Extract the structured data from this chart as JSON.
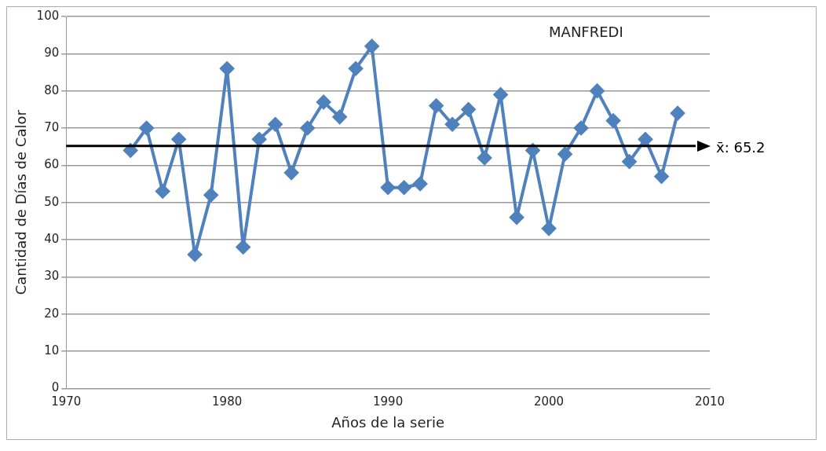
{
  "chart_data": {
    "type": "line",
    "xlabel": "Años de la serie",
    "ylabel": "Cantidad de Días de Calor",
    "annotations": [
      "MANFREDI"
    ],
    "x": [
      1974,
      1975,
      1976,
      1977,
      1978,
      1979,
      1980,
      1981,
      1982,
      1983,
      1984,
      1985,
      1986,
      1987,
      1988,
      1989,
      1990,
      1991,
      1992,
      1993,
      1994,
      1995,
      1996,
      1997,
      1998,
      1999,
      2000,
      2001,
      2002,
      2003,
      2004,
      2005,
      2006,
      2007,
      2008
    ],
    "series": [
      {
        "color": "#4f81bd",
        "values": [
          64,
          70,
          53,
          67,
          36,
          52,
          86,
          38,
          67,
          71,
          58,
          70,
          77,
          73,
          86,
          92,
          54,
          54,
          55,
          76,
          71,
          75,
          62,
          79,
          46,
          64,
          43,
          63,
          70,
          80,
          72,
          61,
          67,
          57,
          74
        ]
      }
    ],
    "xlim": [
      1970,
      2010
    ],
    "xticks": [
      1970,
      1980,
      1990,
      2000,
      2010
    ],
    "ylim": [
      0,
      100
    ],
    "yticks": [
      0,
      10,
      20,
      30,
      40,
      50,
      60,
      70,
      80,
      90,
      100
    ],
    "ref_lines": [
      {
        "axis": "y",
        "value": 65.2,
        "label": "x̄: 65.2",
        "color": "#000000"
      }
    ],
    "grid": "y",
    "legend": false,
    "marker": "diamond",
    "line_style": "solid"
  }
}
